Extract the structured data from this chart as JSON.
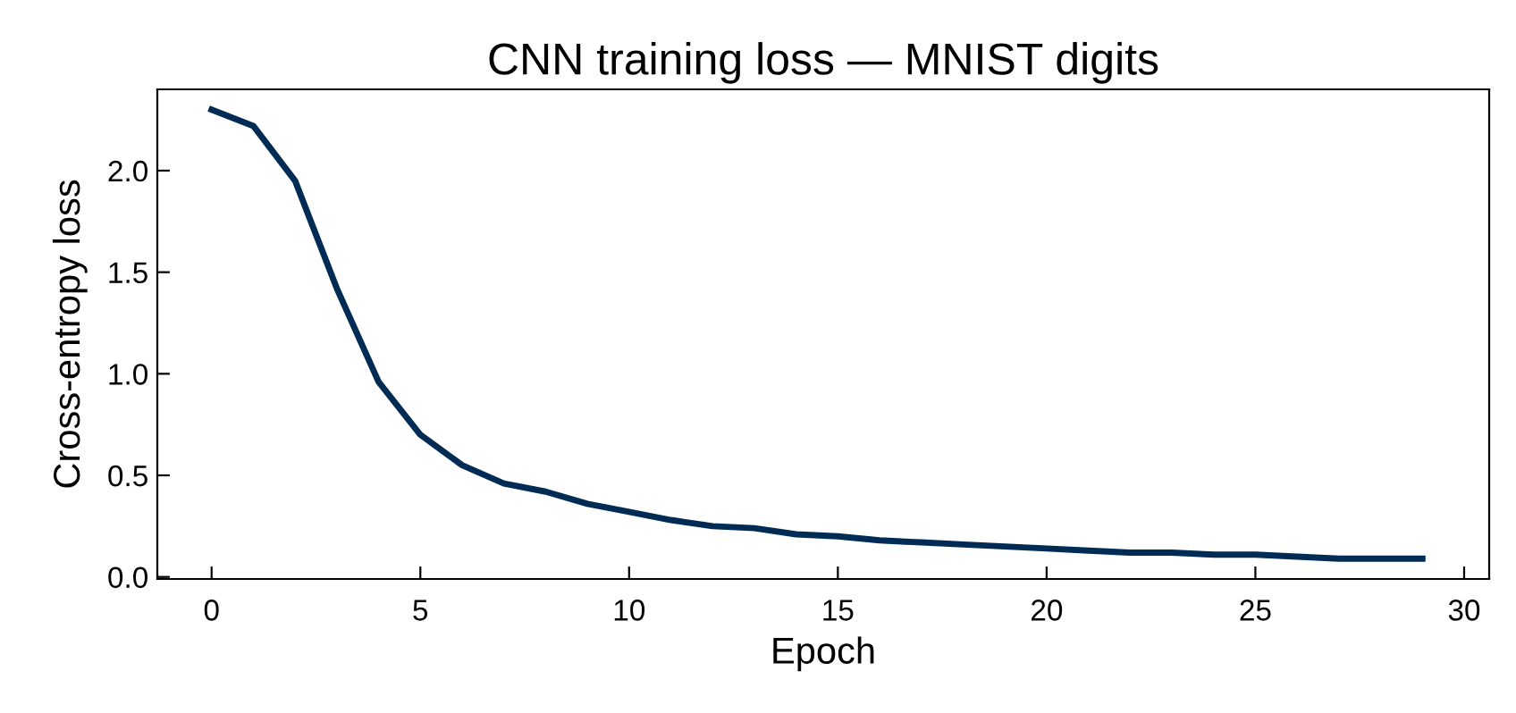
{
  "chart_data": {
    "type": "line",
    "title": "CNN training loss — MNIST digits",
    "xlabel": "Epoch",
    "ylabel": "Cross-entropy loss",
    "x": [
      0,
      1,
      2,
      3,
      4,
      5,
      6,
      7,
      8,
      9,
      10,
      11,
      12,
      13,
      14,
      15,
      16,
      17,
      18,
      19,
      20,
      21,
      22,
      23,
      24,
      25,
      26,
      27,
      28,
      29
    ],
    "series": [
      {
        "color": "#002b55",
        "values": [
          2.3,
          2.22,
          1.95,
          1.42,
          0.96,
          0.7,
          0.55,
          0.46,
          0.42,
          0.36,
          0.32,
          0.28,
          0.25,
          0.24,
          0.21,
          0.2,
          0.18,
          0.17,
          0.16,
          0.15,
          0.14,
          0.13,
          0.12,
          0.12,
          0.11,
          0.11,
          0.1,
          0.09,
          0.09,
          0.09
        ]
      }
    ],
    "xlim": [
      -1.3,
      30.6
    ],
    "ylim": [
      -0.01,
      2.4
    ],
    "xticks": [
      0,
      5,
      10,
      15,
      20,
      25,
      30
    ],
    "yticks": [
      {
        "value": 0,
        "label": "0.0"
      },
      {
        "value": 0.5,
        "label": "0.5"
      },
      {
        "value": 1,
        "label": "1.0"
      },
      {
        "value": 1.5,
        "label": "1.5"
      },
      {
        "value": 2,
        "label": "2.0"
      }
    ],
    "grid": false,
    "marker": "none",
    "line_style": "solid"
  }
}
